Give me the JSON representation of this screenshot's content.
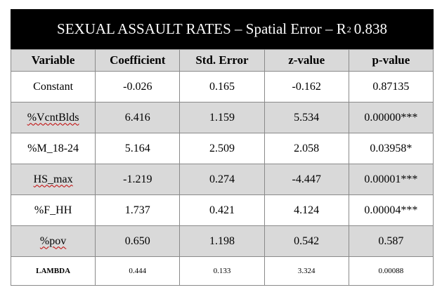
{
  "title": {
    "main": "SEXUAL ASSAULT RATES – Spatial Error – R",
    "sup": "2",
    "tail": "0.838"
  },
  "headers": [
    "Variable",
    "Coefficient",
    "Std. Error",
    "z-value",
    "p-value"
  ],
  "rows": [
    [
      "Constant",
      "-0.026",
      "0.165",
      "-0.162",
      "0.87135"
    ],
    [
      "%VcntBlds",
      "6.416",
      "1.159",
      "5.534",
      "0.00000***"
    ],
    [
      "%M_18-24",
      "5.164",
      "2.509",
      "2.058",
      "0.03958*"
    ],
    [
      "HS_max",
      "-1.219",
      "0.274",
      "-4.447",
      "0.00001***"
    ],
    [
      "%F_HH",
      "1.737",
      "0.421",
      "4.124",
      "0.00004***"
    ],
    [
      "%pov",
      "0.650",
      "1.198",
      "0.542",
      "0.587"
    ],
    [
      "LAMBDA",
      "0.444",
      "0.133",
      "3.324",
      "0.00088"
    ]
  ]
}
